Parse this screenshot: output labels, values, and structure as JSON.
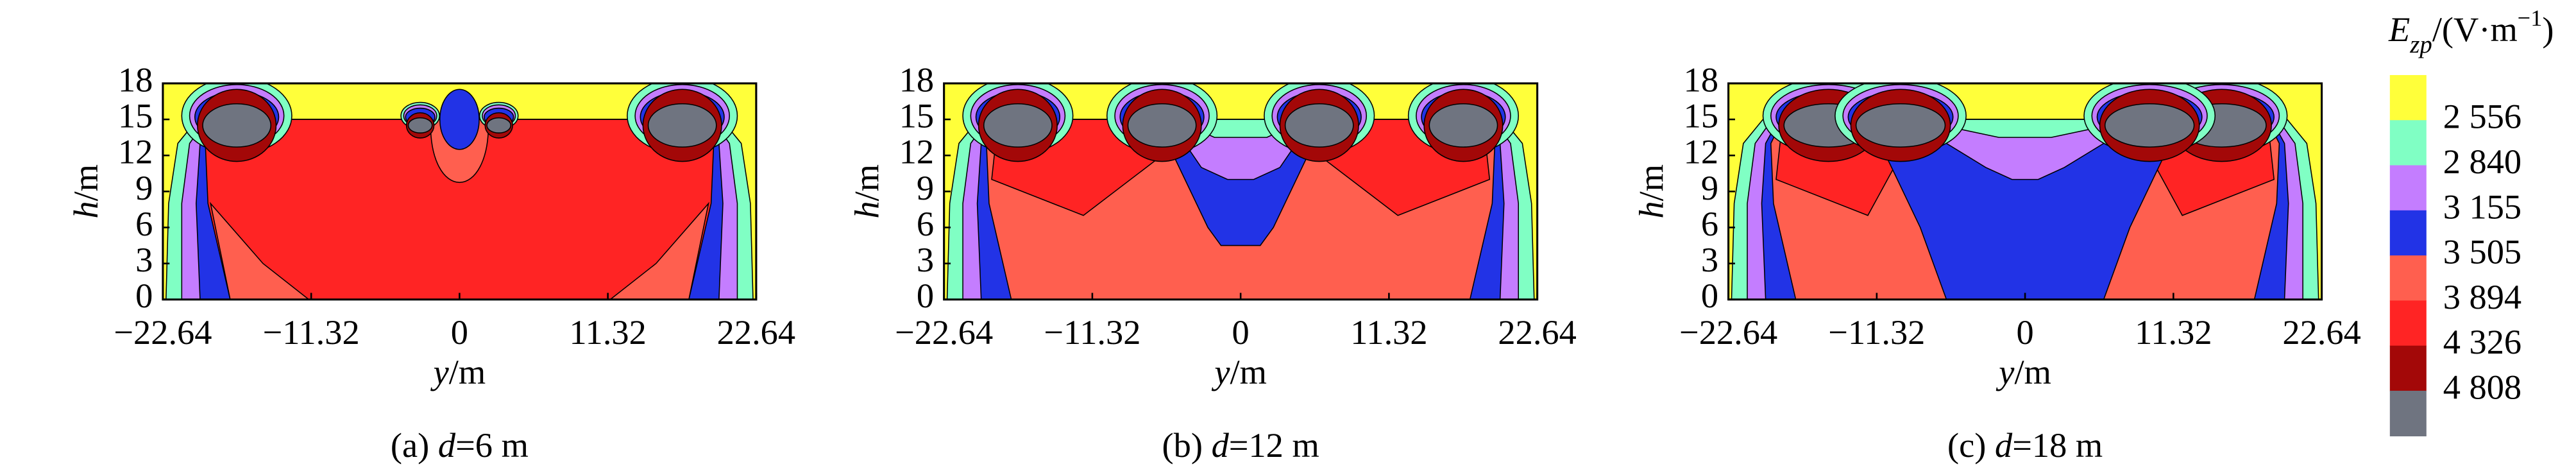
{
  "chart_data": [
    {
      "type": "contour",
      "caption_label": "(a)",
      "caption_var": "d",
      "caption_value": "=6 m",
      "xlabel_var": "y",
      "xlabel_unit": "/m",
      "ylabel_var": "h",
      "ylabel_unit": "/m",
      "xlim": [
        -22.64,
        22.64
      ],
      "ylim": [
        0,
        18
      ],
      "xticks": [
        {
          "value": -22.64,
          "label": "−22.64"
        },
        {
          "value": -11.32,
          "label": "−11.32"
        },
        0,
        11.32,
        22.64
      ],
      "yticks": [
        0,
        3,
        6,
        9,
        12,
        15,
        18
      ]
    },
    {
      "type": "contour",
      "caption_label": "(b)",
      "caption_var": "d",
      "caption_value": "=12 m",
      "xlabel_var": "y",
      "xlabel_unit": "/m",
      "ylabel_var": "h",
      "ylabel_unit": "/m",
      "xlim": [
        -22.64,
        22.64
      ],
      "ylim": [
        0,
        18
      ],
      "xticks": [
        {
          "value": -22.64,
          "label": "−22.64"
        },
        {
          "value": -11.32,
          "label": "−11.32"
        },
        0,
        11.32,
        22.64
      ],
      "yticks": [
        0,
        3,
        6,
        9,
        12,
        15,
        18
      ]
    },
    {
      "type": "contour",
      "caption_label": "(c)",
      "caption_var": "d",
      "caption_value": "=18 m",
      "xlabel_var": "y",
      "xlabel_unit": "/m",
      "ylabel_var": "h",
      "ylabel_unit": "/m",
      "xlim": [
        -22.64,
        22.64
      ],
      "ylim": [
        0,
        18
      ],
      "xticks": [
        {
          "value": -22.64,
          "label": "−22.64"
        },
        {
          "value": -11.32,
          "label": "−11.32"
        },
        0,
        11.32,
        22.64
      ],
      "yticks": [
        0,
        3,
        6,
        9,
        12,
        15,
        18
      ]
    }
  ],
  "colorbar": {
    "title_var": "E",
    "title_sub": "zp",
    "title_unit": "/(V·m",
    "title_sup": "−1",
    "title_close": ")",
    "levels": [
      {
        "value": 2556,
        "label": "2 556"
      },
      {
        "value": 2840,
        "label": "2 840"
      },
      {
        "value": 3155,
        "label": "3 155"
      },
      {
        "value": 3505,
        "label": "3 505"
      },
      {
        "value": 3894,
        "label": "3 894"
      },
      {
        "value": 4326,
        "label": "4 326"
      },
      {
        "value": 4808,
        "label": "4 808"
      }
    ],
    "colors": [
      "#ffff3a",
      "#80ffc4",
      "#c47dff",
      "#2233e6",
      "#ff5f4f",
      "#ff2424",
      "#a30808",
      "#6f7480"
    ]
  }
}
